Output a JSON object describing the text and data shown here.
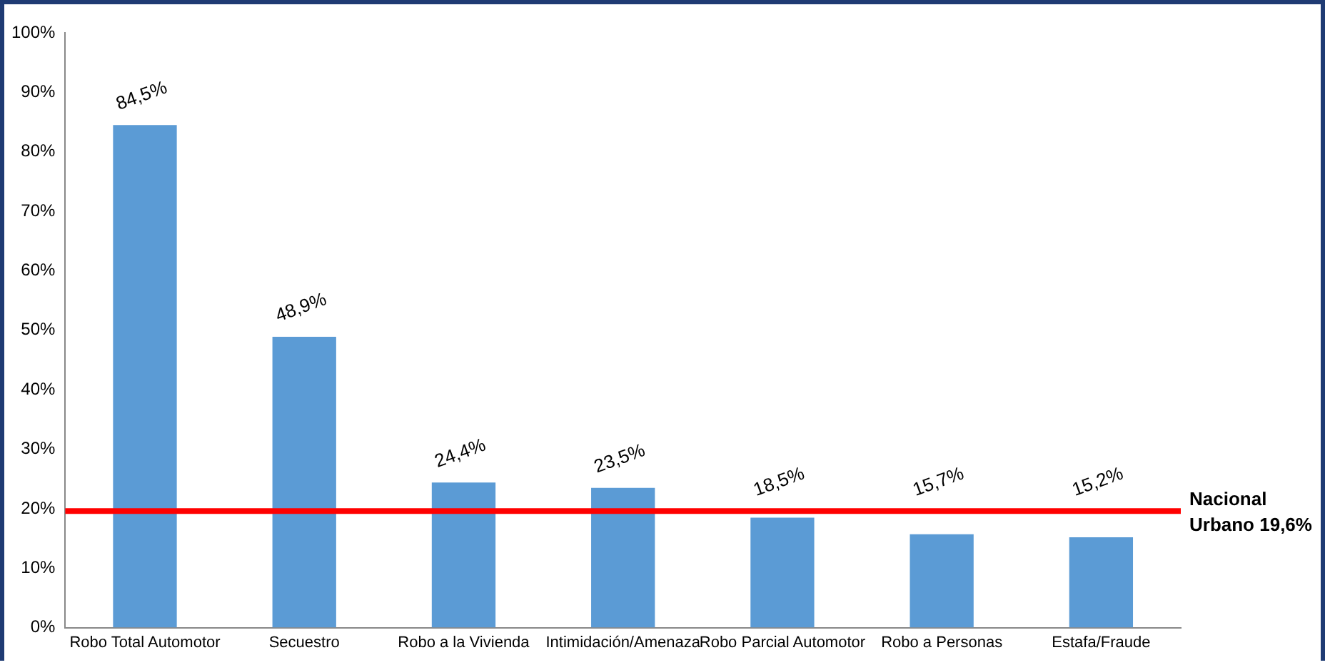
{
  "chart_data": {
    "type": "bar",
    "categories": [
      "Robo Total Automotor",
      "Secuestro",
      "Robo a la Vivienda",
      "Intimidación/Amenaza",
      "Robo Parcial Automotor",
      "Robo a Personas",
      "Estafa/Fraude"
    ],
    "values": [
      84.5,
      48.9,
      24.4,
      23.5,
      18.5,
      15.7,
      15.2
    ],
    "value_labels": [
      "84,5%",
      "48,9%",
      "24,4%",
      "23,5%",
      "18,5%",
      "15,7%",
      "15,2%"
    ],
    "color": "#5b9bd5",
    "ylim": [
      0,
      100
    ],
    "yticks": [
      {
        "value": 0,
        "label": "0%"
      },
      {
        "value": 10,
        "label": "10%"
      },
      {
        "value": 20,
        "label": "20%"
      },
      {
        "value": 30,
        "label": "30%"
      },
      {
        "value": 40,
        "label": "40%"
      },
      {
        "value": 50,
        "label": "50%"
      },
      {
        "value": 60,
        "label": "60%"
      },
      {
        "value": 70,
        "label": "70%"
      },
      {
        "value": 80,
        "label": "80%"
      },
      {
        "value": 90,
        "label": "90%"
      },
      {
        "value": 100,
        "label": "100%"
      }
    ],
    "ref_lines": [
      {
        "axis": "y",
        "value": 19.6,
        "label": "Nacional Urbano 19,6%",
        "color": "#ff0000"
      }
    ],
    "grid": false,
    "legend": false
  }
}
